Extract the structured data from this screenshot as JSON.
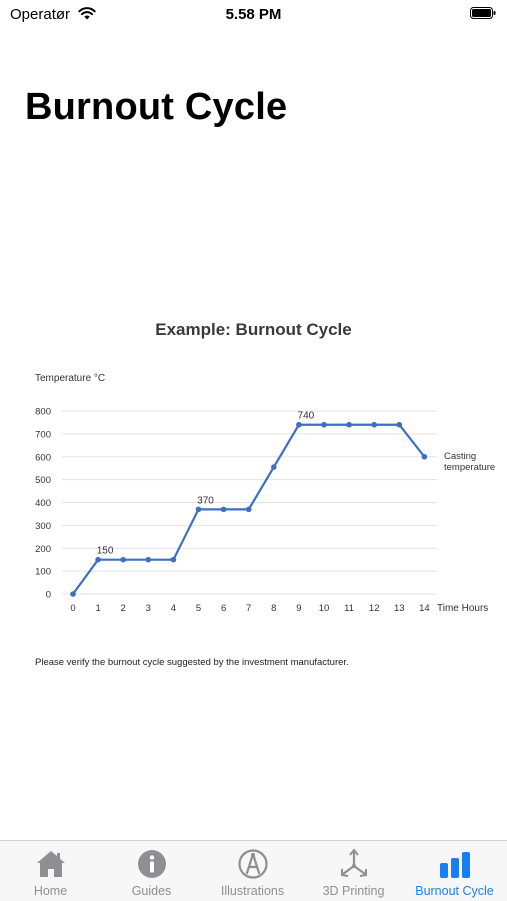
{
  "status": {
    "carrier": "Operatør",
    "time": "5.58 PM"
  },
  "page": {
    "title": "Burnout Cycle"
  },
  "note": "Please verify the burnout cycle suggested by the investment manufacturer.",
  "tabs": [
    {
      "label": "Home",
      "icon": "house-icon",
      "active": false
    },
    {
      "label": "Guides",
      "icon": "info-circle-icon",
      "active": false
    },
    {
      "label": "Illustrations",
      "icon": "compass-icon",
      "active": false
    },
    {
      "label": "3D Printing",
      "icon": "3d-axes-icon",
      "active": false
    },
    {
      "label": "Burnout Cycle",
      "icon": "bar-chart-icon",
      "active": true
    }
  ],
  "colors": {
    "accent": "#1a7df2",
    "line": "#3f6fc1",
    "inactive": "#8e8e93"
  },
  "chart_data": {
    "type": "line",
    "title": "Example: Burnout Cycle",
    "ylabel": "Temperature °C",
    "xlabel": "Time Hours",
    "x": [
      0,
      1,
      2,
      3,
      4,
      5,
      6,
      7,
      8,
      9,
      10,
      11,
      12,
      13,
      14
    ],
    "series": [
      {
        "values": [
          0,
          150,
          150,
          150,
          150,
          370,
          370,
          370,
          555,
          740,
          740,
          740,
          740,
          740,
          600
        ]
      }
    ],
    "yticks": [
      0,
      100,
      200,
      300,
      400,
      500,
      600,
      700,
      800
    ],
    "ylim": [
      0,
      800
    ],
    "data_labels": [
      {
        "index": 1,
        "text": "150"
      },
      {
        "index": 5,
        "text": "370"
      },
      {
        "index": 9,
        "text": "740"
      }
    ],
    "annotation": {
      "index": 14,
      "lines": [
        "Casting",
        "temperature"
      ]
    },
    "grid": true
  }
}
